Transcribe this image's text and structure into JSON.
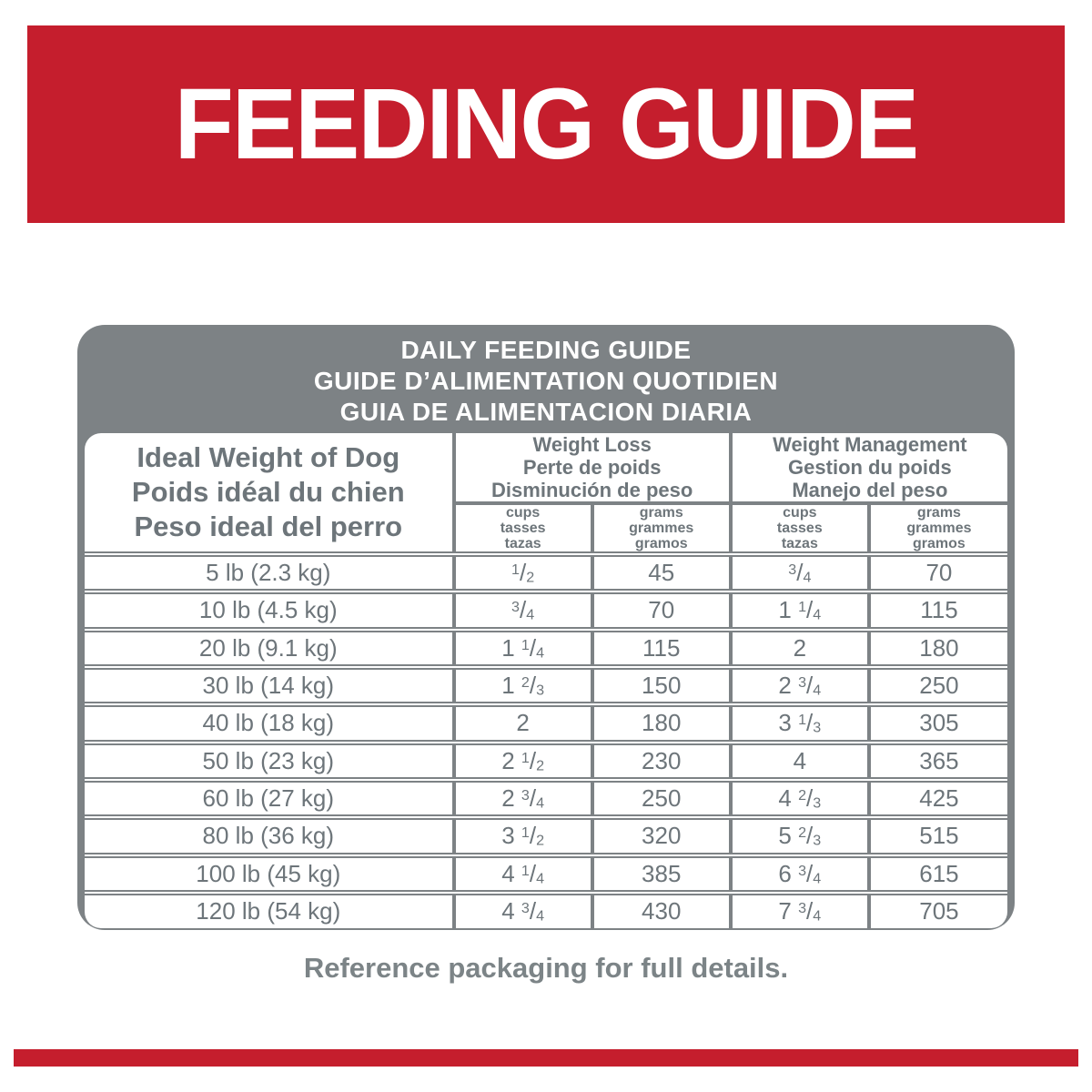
{
  "banner": {
    "title": "FEEDING GUIDE"
  },
  "feeding_table": {
    "title_lines": [
      "DAILY FEEDING GUIDE",
      "GUIDE D’ALIMENTATION QUOTIDIEN",
      "GUIA DE ALIMENTACION DIARIA"
    ],
    "weight_header_lines": [
      "Ideal Weight of Dog",
      "Poids idéal du chien",
      "Peso ideal del perro"
    ],
    "groups": [
      {
        "lines": [
          "Weight Loss",
          "Perte de poids",
          "Disminución de peso"
        ]
      },
      {
        "lines": [
          "Weight Management",
          "Gestion du poids",
          "Manejo del peso"
        ]
      }
    ],
    "unit_headers": {
      "cups": [
        "cups",
        "tasses",
        "tazas"
      ],
      "grams": [
        "grams",
        "grammes",
        "gramos"
      ]
    },
    "rows": [
      {
        "weight": "5 lb (2.3 kg)",
        "weight_loss_cups": "1/2",
        "weight_loss_grams": "45",
        "weight_mgmt_cups": "3/4",
        "weight_mgmt_grams": "70"
      },
      {
        "weight": "10 lb (4.5 kg)",
        "weight_loss_cups": "3/4",
        "weight_loss_grams": "70",
        "weight_mgmt_cups": "1 1/4",
        "weight_mgmt_grams": "115"
      },
      {
        "weight": "20 lb (9.1 kg)",
        "weight_loss_cups": "1 1/4",
        "weight_loss_grams": "115",
        "weight_mgmt_cups": "2",
        "weight_mgmt_grams": "180"
      },
      {
        "weight": "30 lb (14 kg)",
        "weight_loss_cups": "1 2/3",
        "weight_loss_grams": "150",
        "weight_mgmt_cups": "2 3/4",
        "weight_mgmt_grams": "250"
      },
      {
        "weight": "40 lb (18 kg)",
        "weight_loss_cups": "2",
        "weight_loss_grams": "180",
        "weight_mgmt_cups": "3 1/3",
        "weight_mgmt_grams": "305"
      },
      {
        "weight": "50 lb (23 kg)",
        "weight_loss_cups": "2 1/2",
        "weight_loss_grams": "230",
        "weight_mgmt_cups": "4",
        "weight_mgmt_grams": "365"
      },
      {
        "weight": "60 lb (27 kg)",
        "weight_loss_cups": "2 3/4",
        "weight_loss_grams": "250",
        "weight_mgmt_cups": "4 2/3",
        "weight_mgmt_grams": "425"
      },
      {
        "weight": "80 lb (36 kg)",
        "weight_loss_cups": "3 1/2",
        "weight_loss_grams": "320",
        "weight_mgmt_cups": "5 2/3",
        "weight_mgmt_grams": "515"
      },
      {
        "weight": "100 lb (45 kg)",
        "weight_loss_cups": "4 1/4",
        "weight_loss_grams": "385",
        "weight_mgmt_cups": "6 3/4",
        "weight_mgmt_grams": "615"
      },
      {
        "weight": "120 lb (54 kg)",
        "weight_loss_cups": "4 3/4",
        "weight_loss_grams": "430",
        "weight_mgmt_cups": "7 3/4",
        "weight_mgmt_grams": "705"
      }
    ]
  },
  "footer": {
    "note": "Reference packaging for full details."
  },
  "colors": {
    "brand_red": "#c51e2d",
    "band_gray": "#7d8285",
    "text_gray": "#6d757a"
  }
}
